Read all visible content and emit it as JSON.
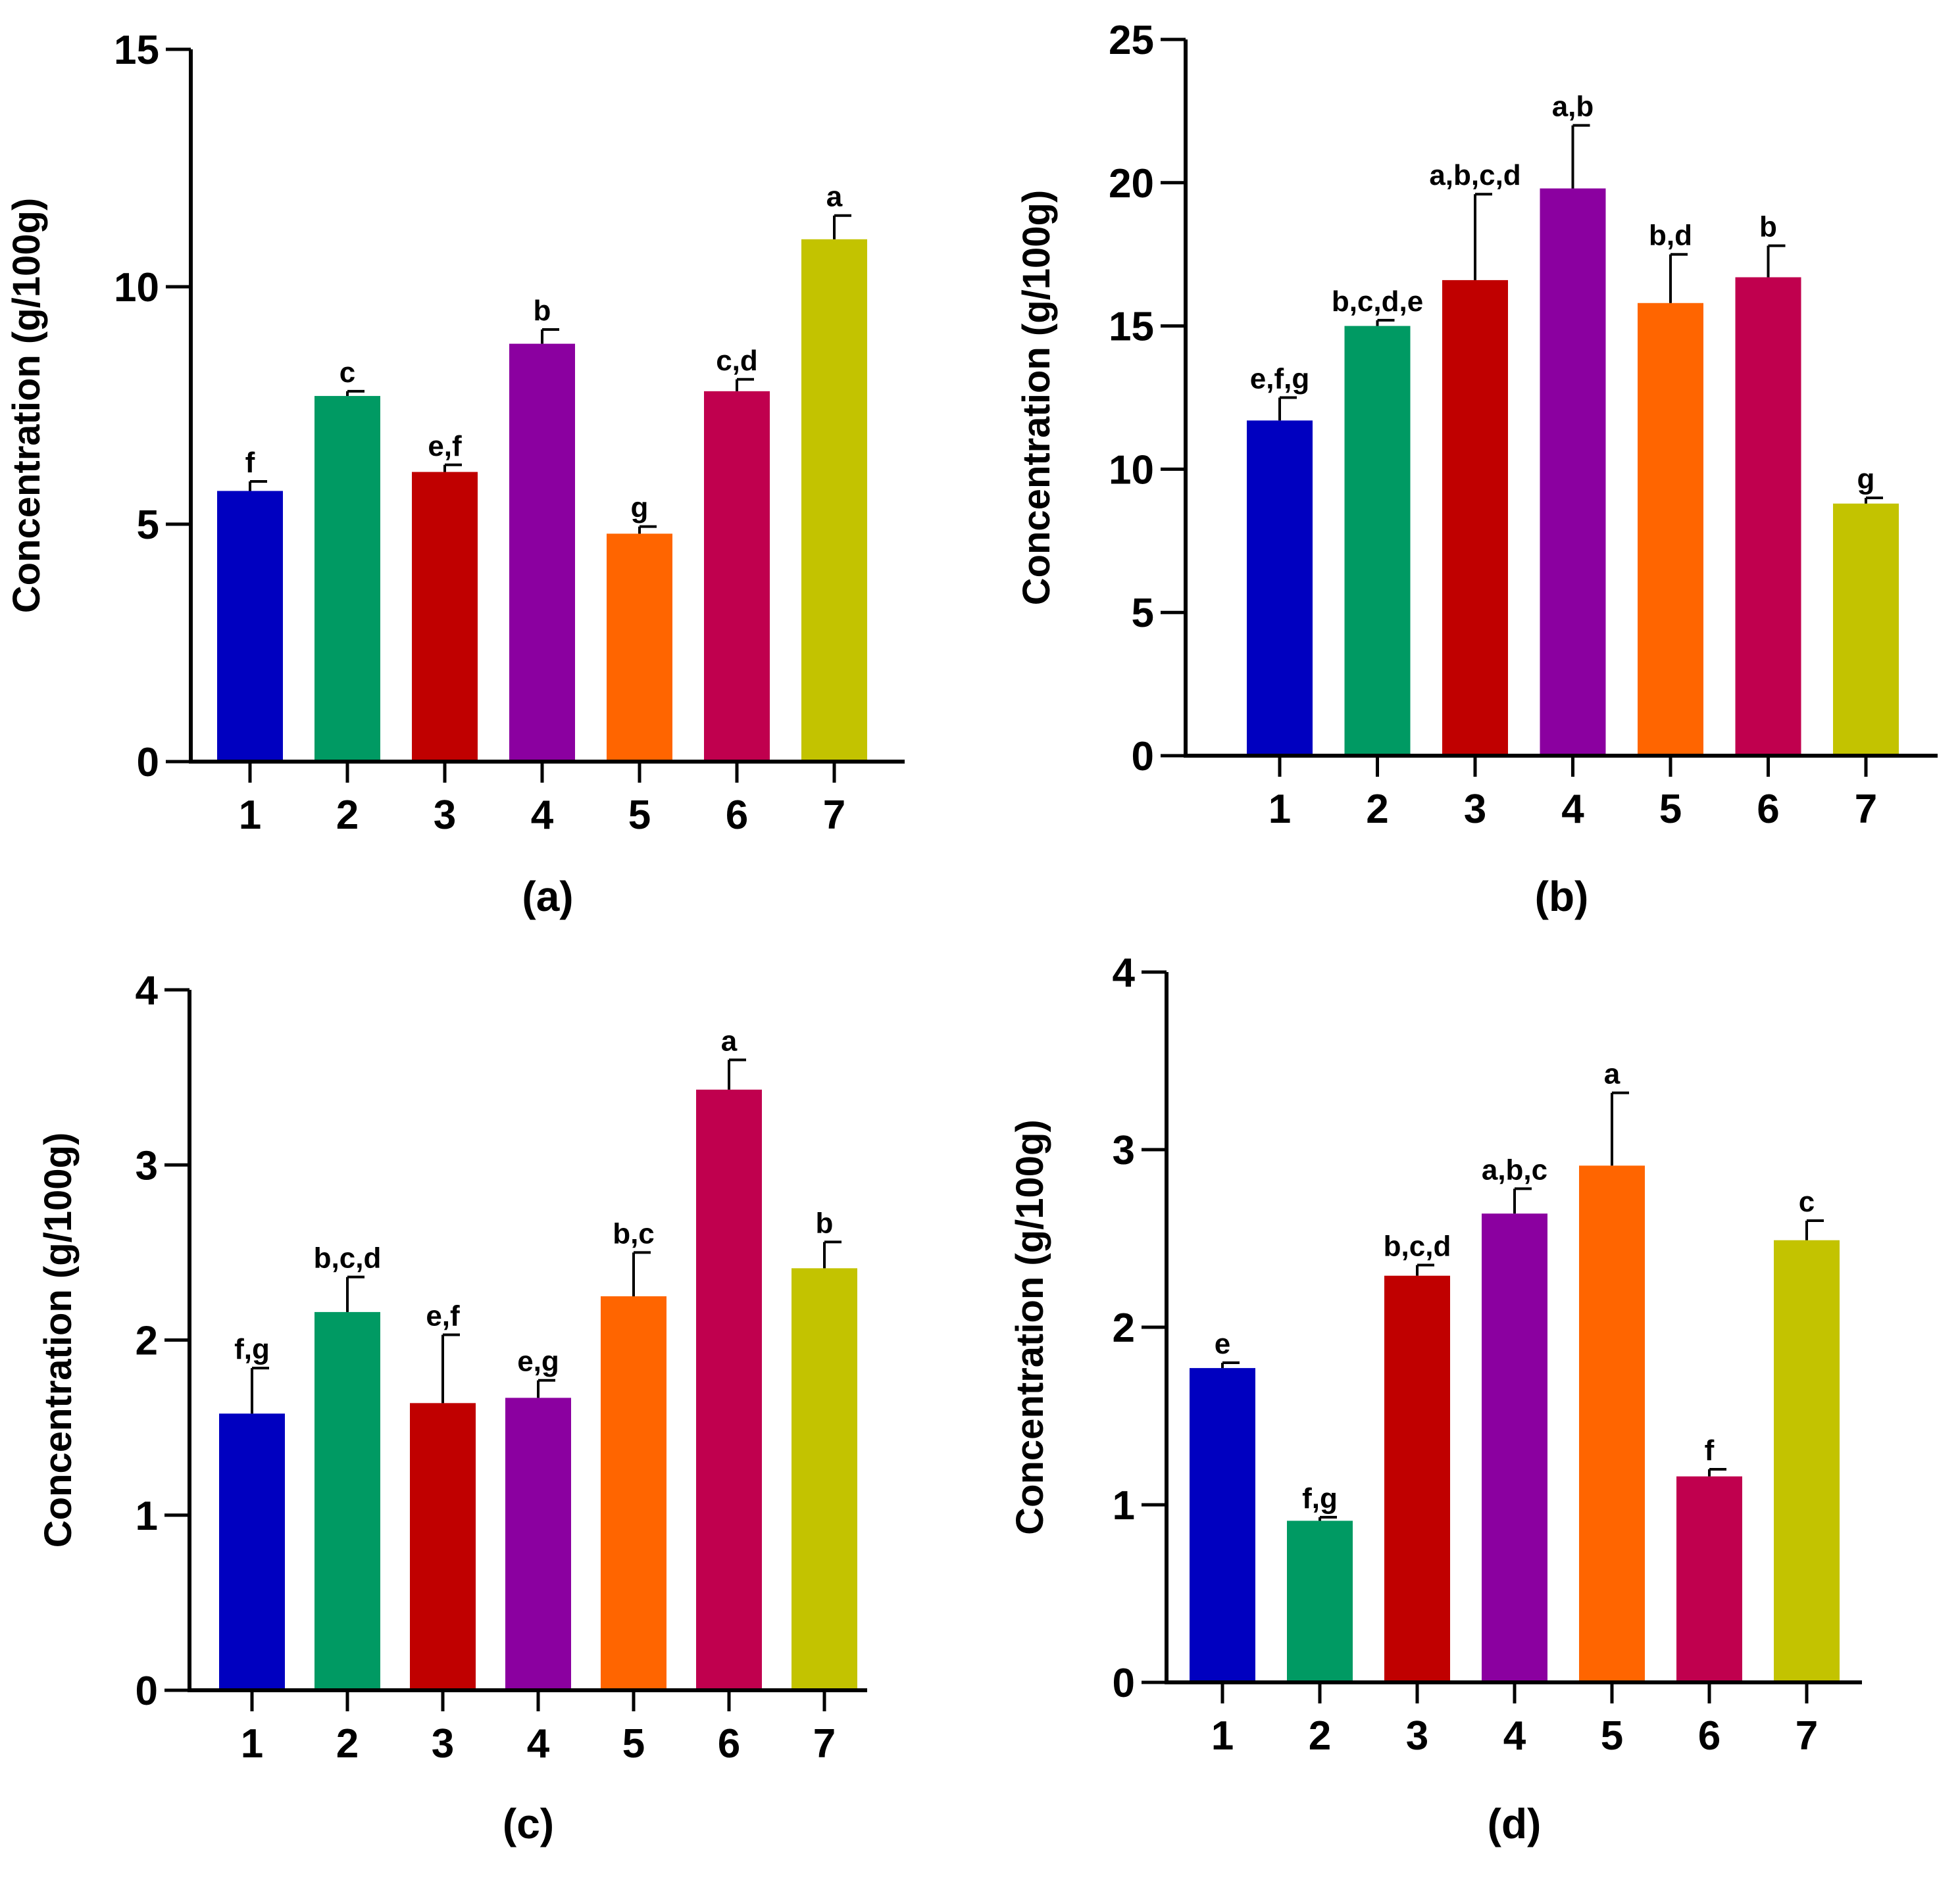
{
  "chart_data": [
    {
      "type": "bar",
      "panel_label": "(a)",
      "ylabel": "Concentration (g/100g)",
      "xlabel": "",
      "ylim": [
        0,
        15
      ],
      "yticks": [
        0,
        5,
        10,
        15
      ],
      "categories": [
        "1",
        "2",
        "3",
        "4",
        "5",
        "6",
        "7"
      ],
      "values": [
        5.7,
        7.7,
        6.1,
        8.8,
        4.8,
        7.8,
        11.0
      ],
      "errors": [
        0.2,
        0.1,
        0.15,
        0.3,
        0.15,
        0.25,
        0.5
      ],
      "significance": [
        "f",
        "c",
        "e,f",
        "b",
        "g",
        "c,d",
        "a"
      ]
    },
    {
      "type": "bar",
      "panel_label": "(b)",
      "ylabel": "Concentration (g/100g)",
      "xlabel": "",
      "ylim": [
        0,
        25
      ],
      "yticks": [
        0,
        5,
        10,
        15,
        20,
        25
      ],
      "categories": [
        "1",
        "2",
        "3",
        "4",
        "5",
        "6",
        "7"
      ],
      "values": [
        11.7,
        15.0,
        16.6,
        19.8,
        15.8,
        16.7,
        8.8
      ],
      "errors": [
        0.8,
        0.2,
        3.0,
        2.2,
        1.7,
        1.1,
        0.2
      ],
      "significance": [
        "e,f,g",
        "b,c,d,e",
        "a,b,c,d",
        "a,b",
        "b,d",
        "b",
        "g"
      ]
    },
    {
      "type": "bar",
      "panel_label": "(c)",
      "ylabel": "Concentration (g/100g)",
      "xlabel": "",
      "ylim": [
        0,
        4
      ],
      "yticks": [
        0,
        1,
        2,
        3,
        4
      ],
      "categories": [
        "1",
        "2",
        "3",
        "4",
        "5",
        "6",
        "7"
      ],
      "values": [
        1.58,
        2.16,
        1.64,
        1.67,
        2.25,
        3.43,
        2.41
      ],
      "errors": [
        0.26,
        0.2,
        0.39,
        0.1,
        0.25,
        0.17,
        0.15
      ],
      "significance": [
        "f,g",
        "b,c,d",
        "e,f",
        "e,g",
        "b,c",
        "a",
        "b"
      ]
    },
    {
      "type": "bar",
      "panel_label": "(d)",
      "ylabel": "Concentration (g/100g)",
      "xlabel": "",
      "ylim": [
        0,
        4
      ],
      "yticks": [
        0,
        1,
        2,
        3,
        4
      ],
      "categories": [
        "1",
        "2",
        "3",
        "4",
        "5",
        "6",
        "7"
      ],
      "values": [
        1.77,
        0.91,
        2.29,
        2.64,
        2.91,
        1.16,
        2.49
      ],
      "errors": [
        0.03,
        0.02,
        0.06,
        0.14,
        0.41,
        0.04,
        0.11
      ],
      "significance": [
        "e",
        "f,g",
        "b,c,d",
        "a,b,c",
        "a",
        "f",
        "c"
      ]
    }
  ],
  "bar_colors": [
    "#0000c0",
    "#009a63",
    "#c00000",
    "#8b00a0",
    "#ff6500",
    "#c0004e",
    "#c3c300"
  ],
  "axis_color": "#000000"
}
